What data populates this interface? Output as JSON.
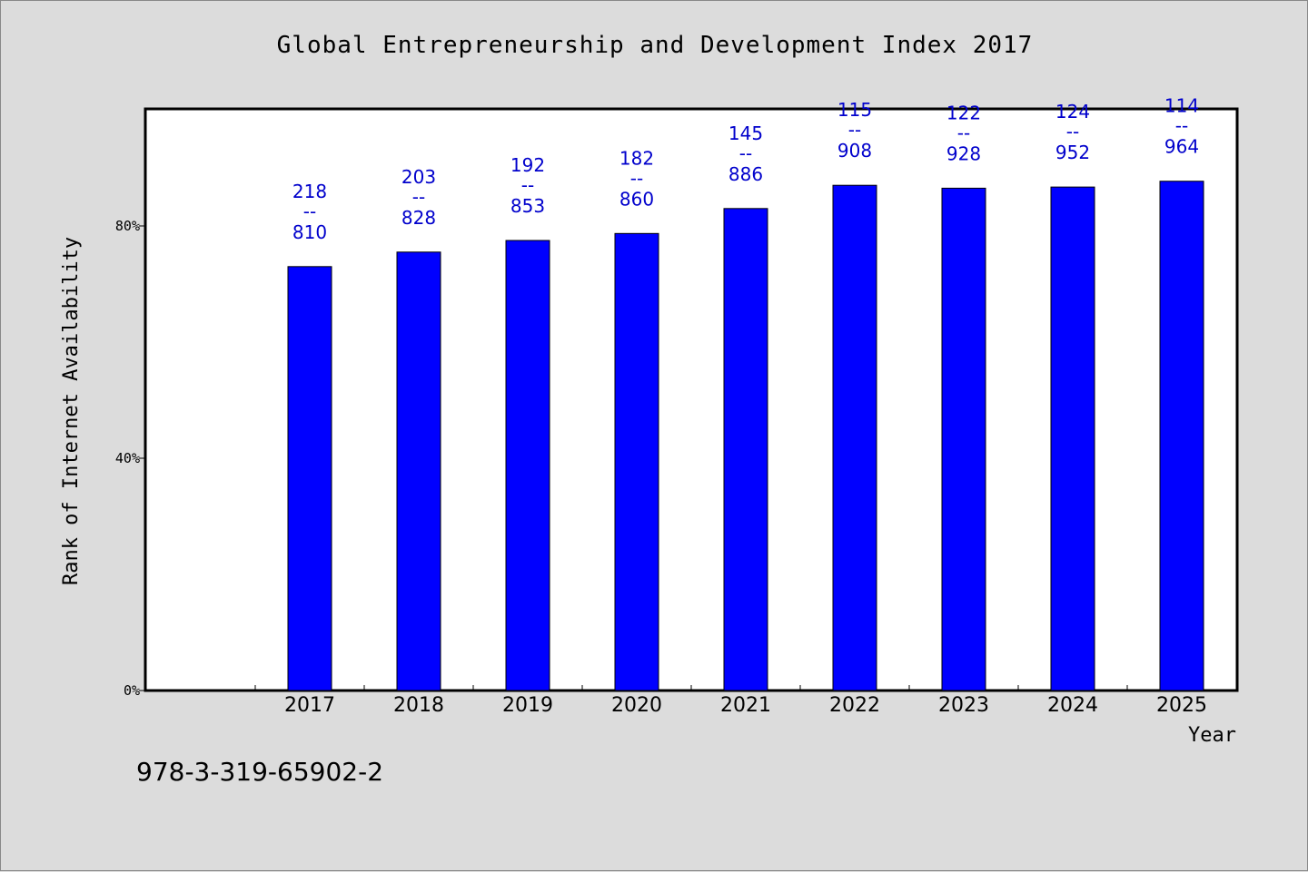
{
  "chart_data": {
    "type": "bar",
    "title": "Global Entrepreneurship and Development Index 2017",
    "xlabel": "Year",
    "ylabel": "Rank of Internet Availability",
    "categories": [
      "2017",
      "2018",
      "2019",
      "2020",
      "2021",
      "2022",
      "2023",
      "2024",
      "2025"
    ],
    "values": [
      73,
      75.5,
      77.5,
      78.7,
      83,
      87,
      86.5,
      86.7,
      87.7
    ],
    "data_labels": [
      {
        "top": "218",
        "sep": "--",
        "bottom": "810"
      },
      {
        "top": "203",
        "sep": "--",
        "bottom": "828"
      },
      {
        "top": "192",
        "sep": "--",
        "bottom": "853"
      },
      {
        "top": "182",
        "sep": "--",
        "bottom": "860"
      },
      {
        "top": "145",
        "sep": "--",
        "bottom": "886"
      },
      {
        "top": "115",
        "sep": "--",
        "bottom": "908"
      },
      {
        "top": "122",
        "sep": "--",
        "bottom": "928"
      },
      {
        "top": "124",
        "sep": "--",
        "bottom": "952"
      },
      {
        "top": "114",
        "sep": "--",
        "bottom": "964"
      }
    ],
    "ylim": [
      0,
      100
    ],
    "yticks": [
      {
        "value": 0,
        "label": "0%"
      },
      {
        "value": 40,
        "label": "40%"
      },
      {
        "value": 80,
        "label": "80%"
      }
    ],
    "grid": false,
    "bar_color": "#0000ff",
    "label_color": "#0000cc"
  },
  "footer": {
    "isbn": "978-3-319-65902-2"
  }
}
